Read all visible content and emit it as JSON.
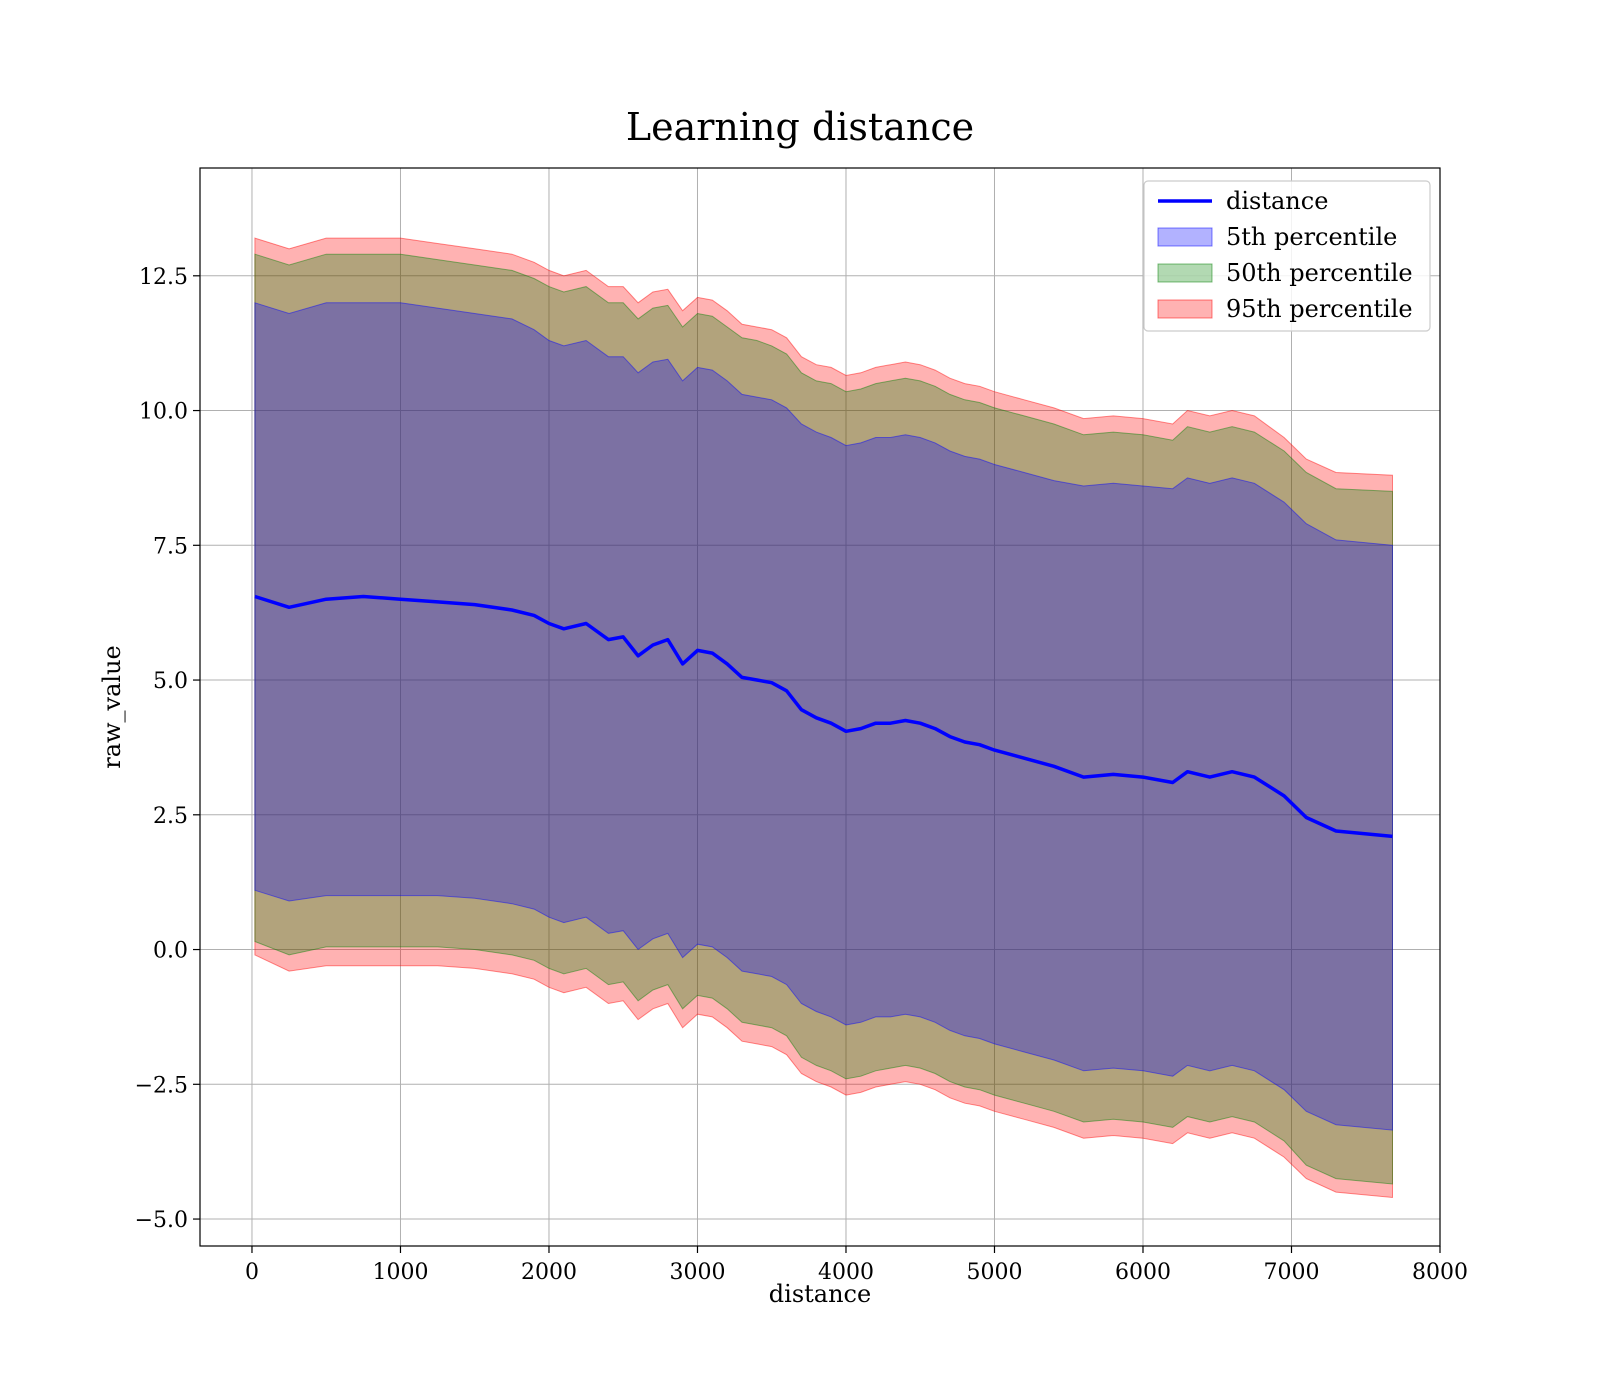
{
  "chart_data": {
    "type": "area",
    "title": "Learning distance",
    "xlabel": "distance",
    "ylabel": "raw_value",
    "xlim": [
      -350,
      8000
    ],
    "ylim": [
      -5.5,
      14.5
    ],
    "xticks": [
      0,
      1000,
      2000,
      3000,
      4000,
      5000,
      6000,
      7000,
      8000
    ],
    "yticks": [
      -5.0,
      -2.5,
      0.0,
      2.5,
      5.0,
      7.5,
      10.0,
      12.5
    ],
    "grid": true,
    "legend_position": "top-right",
    "x": [
      20,
      250,
      500,
      750,
      1000,
      1250,
      1500,
      1750,
      1900,
      2000,
      2100,
      2250,
      2400,
      2500,
      2600,
      2700,
      2800,
      2900,
      3000,
      3100,
      3200,
      3300,
      3400,
      3500,
      3600,
      3700,
      3800,
      3900,
      4000,
      4100,
      4200,
      4300,
      4400,
      4500,
      4600,
      4700,
      4800,
      4900,
      5000,
      5200,
      5400,
      5600,
      5800,
      6000,
      6200,
      6300,
      6450,
      6600,
      6750,
      6950,
      7100,
      7300,
      7680
    ],
    "series": [
      {
        "name": "distance",
        "kind": "line",
        "color": "#0000ff",
        "values": [
          6.55,
          6.35,
          6.5,
          6.55,
          6.5,
          6.45,
          6.4,
          6.3,
          6.2,
          6.05,
          5.95,
          6.05,
          5.75,
          5.8,
          5.45,
          5.65,
          5.75,
          5.3,
          5.55,
          5.5,
          5.3,
          5.05,
          5.0,
          4.95,
          4.8,
          4.45,
          4.3,
          4.2,
          4.05,
          4.1,
          4.2,
          4.2,
          4.25,
          4.2,
          4.1,
          3.95,
          3.85,
          3.8,
          3.7,
          3.55,
          3.4,
          3.2,
          3.25,
          3.2,
          3.1,
          3.3,
          3.2,
          3.3,
          3.2,
          2.85,
          2.45,
          2.2,
          2.1
        ]
      },
      {
        "name": "5th percentile",
        "kind": "band",
        "color": "#0000ff",
        "alpha": 0.3,
        "upper": [
          12.0,
          11.8,
          12.0,
          12.0,
          12.0,
          11.9,
          11.8,
          11.7,
          11.5,
          11.3,
          11.2,
          11.3,
          11.0,
          11.0,
          10.7,
          10.9,
          10.95,
          10.55,
          10.8,
          10.75,
          10.55,
          10.3,
          10.25,
          10.2,
          10.05,
          9.75,
          9.6,
          9.5,
          9.35,
          9.4,
          9.5,
          9.5,
          9.55,
          9.5,
          9.4,
          9.25,
          9.15,
          9.1,
          9.0,
          8.85,
          8.7,
          8.6,
          8.65,
          8.6,
          8.55,
          8.75,
          8.65,
          8.75,
          8.65,
          8.3,
          7.9,
          7.6,
          7.5
        ],
        "lower": [
          1.1,
          0.9,
          1.0,
          1.0,
          1.0,
          1.0,
          0.95,
          0.85,
          0.75,
          0.6,
          0.5,
          0.6,
          0.3,
          0.35,
          0.0,
          0.2,
          0.3,
          -0.15,
          0.1,
          0.05,
          -0.15,
          -0.4,
          -0.45,
          -0.5,
          -0.65,
          -1.0,
          -1.15,
          -1.25,
          -1.4,
          -1.35,
          -1.25,
          -1.25,
          -1.2,
          -1.25,
          -1.35,
          -1.5,
          -1.6,
          -1.65,
          -1.75,
          -1.9,
          -2.05,
          -2.25,
          -2.2,
          -2.25,
          -2.35,
          -2.15,
          -2.25,
          -2.15,
          -2.25,
          -2.6,
          -3.0,
          -3.25,
          -3.35
        ]
      },
      {
        "name": "50th percentile",
        "kind": "band",
        "color": "#008000",
        "alpha": 0.3,
        "upper": [
          12.9,
          12.7,
          12.9,
          12.9,
          12.9,
          12.8,
          12.7,
          12.6,
          12.45,
          12.3,
          12.2,
          12.3,
          12.0,
          12.0,
          11.7,
          11.9,
          11.95,
          11.55,
          11.8,
          11.75,
          11.55,
          11.35,
          11.3,
          11.2,
          11.05,
          10.7,
          10.55,
          10.5,
          10.35,
          10.4,
          10.5,
          10.55,
          10.6,
          10.55,
          10.45,
          10.3,
          10.2,
          10.15,
          10.05,
          9.9,
          9.75,
          9.55,
          9.6,
          9.55,
          9.45,
          9.7,
          9.6,
          9.7,
          9.6,
          9.25,
          8.85,
          8.55,
          8.5
        ],
        "lower": [
          0.15,
          -0.1,
          0.05,
          0.05,
          0.05,
          0.05,
          0.0,
          -0.1,
          -0.2,
          -0.35,
          -0.45,
          -0.35,
          -0.65,
          -0.6,
          -0.95,
          -0.75,
          -0.65,
          -1.1,
          -0.85,
          -0.9,
          -1.1,
          -1.35,
          -1.4,
          -1.45,
          -1.6,
          -2.0,
          -2.15,
          -2.25,
          -2.4,
          -2.35,
          -2.25,
          -2.2,
          -2.15,
          -2.2,
          -2.3,
          -2.45,
          -2.55,
          -2.6,
          -2.7,
          -2.85,
          -3.0,
          -3.2,
          -3.15,
          -3.2,
          -3.3,
          -3.1,
          -3.2,
          -3.1,
          -3.2,
          -3.55,
          -4.0,
          -4.25,
          -4.35
        ]
      },
      {
        "name": "95th percentile",
        "kind": "band",
        "color": "#ff0000",
        "alpha": 0.3,
        "upper": [
          13.2,
          13.0,
          13.2,
          13.2,
          13.2,
          13.1,
          13.0,
          12.9,
          12.75,
          12.6,
          12.5,
          12.6,
          12.3,
          12.3,
          12.0,
          12.2,
          12.25,
          11.85,
          12.1,
          12.05,
          11.85,
          11.6,
          11.55,
          11.5,
          11.35,
          11.0,
          10.85,
          10.8,
          10.65,
          10.7,
          10.8,
          10.85,
          10.9,
          10.85,
          10.75,
          10.6,
          10.5,
          10.45,
          10.35,
          10.2,
          10.05,
          9.85,
          9.9,
          9.85,
          9.75,
          10.0,
          9.9,
          10.0,
          9.9,
          9.5,
          9.1,
          8.85,
          8.8
        ],
        "lower": [
          -0.1,
          -0.4,
          -0.3,
          -0.3,
          -0.3,
          -0.3,
          -0.35,
          -0.45,
          -0.55,
          -0.7,
          -0.8,
          -0.7,
          -1.0,
          -0.95,
          -1.3,
          -1.1,
          -1.0,
          -1.45,
          -1.2,
          -1.25,
          -1.45,
          -1.7,
          -1.75,
          -1.8,
          -1.95,
          -2.3,
          -2.45,
          -2.55,
          -2.7,
          -2.65,
          -2.55,
          -2.5,
          -2.45,
          -2.5,
          -2.6,
          -2.75,
          -2.85,
          -2.9,
          -3.0,
          -3.15,
          -3.3,
          -3.5,
          -3.45,
          -3.5,
          -3.6,
          -3.4,
          -3.5,
          -3.4,
          -3.5,
          -3.85,
          -4.25,
          -4.5,
          -4.6
        ]
      }
    ]
  }
}
